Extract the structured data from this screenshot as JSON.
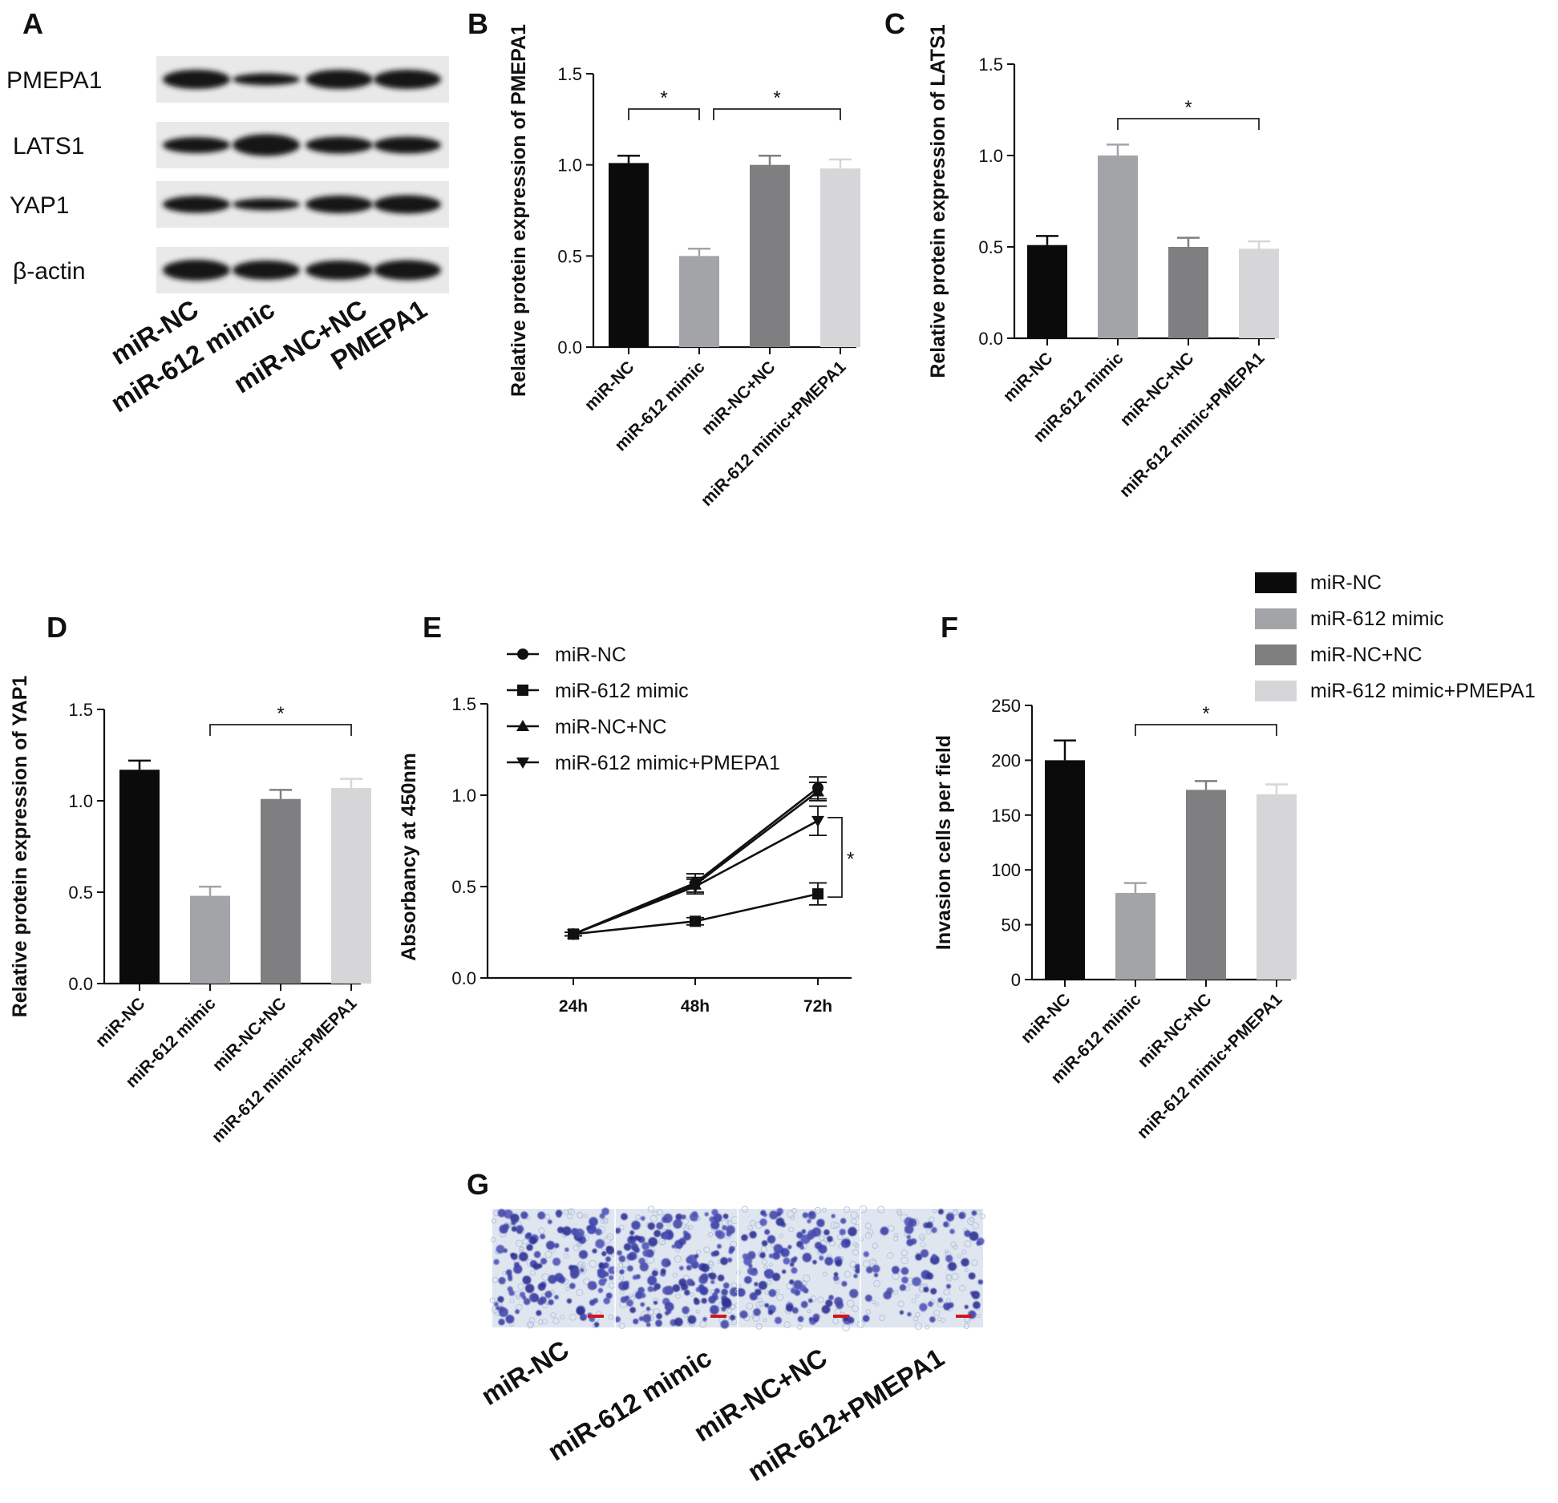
{
  "colors": {
    "miR-NC": "#0b0b0b",
    "miR-612 mimic": "#a3a4a8",
    "miR-NC+NC": "#7f7f81",
    "miR-612 mimic+PMEPA1": "#d6d6d8"
  },
  "panelA": {
    "label": "A",
    "rows": [
      "PMEPA1",
      "LATS1",
      "YAP1",
      "β-actin"
    ],
    "lanes": [
      "miR-NC",
      "miR-612 mimic",
      "miR-NC+NC",
      "PMEPA1"
    ]
  },
  "chart_data": [
    {
      "panel": "B",
      "type": "bar",
      "categories": [
        "miR-NC",
        "miR-612 mimic",
        "miR-NC+NC",
        "miR-612 mimic+PMEPA1"
      ],
      "values": [
        1.01,
        0.5,
        1.0,
        0.98
      ],
      "errors": [
        0.04,
        0.04,
        0.05,
        0.05
      ],
      "ylabel": "Relative protein expression of PMEPA1",
      "ylim": [
        0,
        1.5
      ],
      "yticks": [
        "0.0",
        "0.5",
        "1.0",
        "1.5"
      ],
      "significance": [
        {
          "from": 0,
          "to": 1,
          "label": "*"
        },
        {
          "from": 1,
          "to": 3,
          "label": "*"
        }
      ]
    },
    {
      "panel": "C",
      "type": "bar",
      "categories": [
        "miR-NC",
        "miR-612 mimic",
        "miR-NC+NC",
        "miR-612 mimic+PMEPA1"
      ],
      "values": [
        0.51,
        1.0,
        0.5,
        0.49
      ],
      "errors": [
        0.05,
        0.06,
        0.05,
        0.04
      ],
      "ylabel": "Relative protein expression of LATS1",
      "ylim": [
        0,
        1.5
      ],
      "yticks": [
        "0.0",
        "0.5",
        "1.0",
        "1.5"
      ],
      "significance": [
        {
          "from": 1,
          "to": 3,
          "label": "*"
        }
      ]
    },
    {
      "panel": "D",
      "type": "bar",
      "categories": [
        "miR-NC",
        "miR-612 mimic",
        "miR-NC+NC",
        "miR-612 mimic+PMEPA1"
      ],
      "values": [
        1.17,
        0.48,
        1.01,
        1.07
      ],
      "errors": [
        0.05,
        0.05,
        0.05,
        0.05
      ],
      "ylabel": "Relative protein expression of YAP1",
      "ylim": [
        0,
        1.5
      ],
      "yticks": [
        "0.0",
        "0.5",
        "1.0",
        "1.5"
      ],
      "significance": [
        {
          "from": 1,
          "to": 3,
          "label": "*"
        }
      ]
    },
    {
      "panel": "E",
      "type": "line",
      "x": [
        "24h",
        "48h",
        "72h"
      ],
      "series": [
        {
          "name": "miR-NC",
          "values": [
            0.24,
            0.52,
            1.04
          ],
          "errors": [
            0.01,
            0.05,
            0.06
          ],
          "marker": "circle"
        },
        {
          "name": "miR-612 mimic",
          "values": [
            0.24,
            0.31,
            0.46
          ],
          "errors": [
            0.01,
            0.02,
            0.06
          ],
          "marker": "square"
        },
        {
          "name": "miR-NC+NC",
          "values": [
            0.24,
            0.51,
            1.02
          ],
          "errors": [
            0.01,
            0.04,
            0.05
          ],
          "marker": "triangle-up"
        },
        {
          "name": "miR-612 mimic+PMEPA1",
          "values": [
            0.24,
            0.5,
            0.86
          ],
          "errors": [
            0.01,
            0.04,
            0.08
          ],
          "marker": "triangle-down"
        }
      ],
      "ylabel": "Absorbancy at 450nm",
      "ylim": [
        0,
        1.5
      ],
      "yticks": [
        "0.0",
        "0.5",
        "1.0",
        "1.5"
      ],
      "significance_label": "*"
    },
    {
      "panel": "F",
      "type": "bar",
      "categories": [
        "miR-NC",
        "miR-612 mimic",
        "miR-NC+NC",
        "miR-612 mimic+PMEPA1"
      ],
      "values": [
        200,
        79,
        173,
        169
      ],
      "errors": [
        18,
        9,
        8,
        9
      ],
      "ylabel": "Invasion cells per field",
      "ylim": [
        0,
        250
      ],
      "yticks": [
        "0",
        "50",
        "100",
        "150",
        "200",
        "250"
      ],
      "significance": [
        {
          "from": 1,
          "to": 3,
          "label": "*"
        }
      ],
      "legend": {
        "position": "top-right",
        "entries": [
          "miR-NC",
          "miR-612 mimic",
          "miR-NC+NC",
          "miR-612 mimic+PMEPA1"
        ]
      }
    }
  ],
  "panelG": {
    "label": "G",
    "images": [
      "miR-NC",
      "miR-612 mimic",
      "miR-NC+NC",
      "miR-612+PMEPA1"
    ]
  }
}
